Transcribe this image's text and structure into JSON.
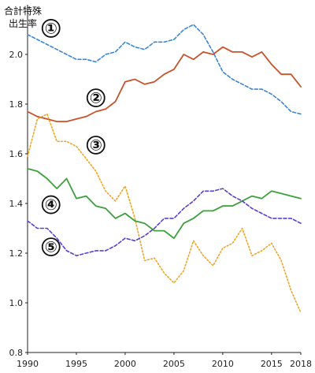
{
  "chart_data": {
    "type": "line",
    "ylabel_lines": [
      "合計特殊",
      "出生率"
    ],
    "xlim": [
      1990,
      2018
    ],
    "ylim": [
      0.8,
      2.2
    ],
    "yticks": [
      0.8,
      1.0,
      1.2,
      1.4,
      1.6,
      1.8,
      2.0
    ],
    "xticks": [
      1990,
      1995,
      2000,
      2005,
      2010,
      2015,
      2018
    ],
    "grid": false,
    "x": [
      1990,
      1991,
      1992,
      1993,
      1994,
      1995,
      1996,
      1997,
      1998,
      1999,
      2000,
      2001,
      2002,
      2003,
      2004,
      2005,
      2006,
      2007,
      2008,
      2009,
      2010,
      2011,
      2012,
      2013,
      2014,
      2015,
      2016,
      2017,
      2018
    ],
    "series": [
      {
        "label": "①",
        "color": "#3a86d8",
        "dash": "dashed",
        "label_x": 1992.4,
        "label_y": 2.105,
        "values": [
          2.08,
          2.06,
          2.04,
          2.02,
          2.0,
          1.98,
          1.98,
          1.97,
          2.0,
          2.01,
          2.05,
          2.03,
          2.02,
          2.05,
          2.05,
          2.06,
          2.1,
          2.12,
          2.08,
          2.01,
          1.93,
          1.9,
          1.88,
          1.86,
          1.86,
          1.84,
          1.81,
          1.77,
          1.76
        ]
      },
      {
        "label": "②",
        "color": "#c8532b",
        "dash": "solid",
        "label_x": 1997.0,
        "label_y": 1.825,
        "values": [
          1.77,
          1.75,
          1.74,
          1.73,
          1.73,
          1.74,
          1.75,
          1.77,
          1.78,
          1.81,
          1.89,
          1.9,
          1.88,
          1.89,
          1.92,
          1.94,
          2.0,
          1.98,
          2.01,
          2.0,
          2.03,
          2.01,
          2.01,
          1.99,
          2.01,
          1.96,
          1.92,
          1.92,
          1.87
        ]
      },
      {
        "label": "③",
        "color": "#f2a524",
        "dash": "dotted",
        "label_x": 1997.0,
        "label_y": 1.635,
        "values": [
          1.59,
          1.74,
          1.76,
          1.65,
          1.65,
          1.63,
          1.58,
          1.53,
          1.45,
          1.41,
          1.47,
          1.34,
          1.17,
          1.18,
          1.12,
          1.08,
          1.13,
          1.25,
          1.19,
          1.15,
          1.22,
          1.24,
          1.3,
          1.19,
          1.21,
          1.24,
          1.17,
          1.05,
          0.96
        ]
      },
      {
        "label": "④",
        "color": "#3ca13a",
        "dash": "solid",
        "label_x": 1992.4,
        "label_y": 1.395,
        "values": [
          1.54,
          1.53,
          1.5,
          1.46,
          1.5,
          1.42,
          1.43,
          1.39,
          1.38,
          1.34,
          1.36,
          1.33,
          1.32,
          1.29,
          1.29,
          1.26,
          1.32,
          1.34,
          1.37,
          1.37,
          1.39,
          1.39,
          1.41,
          1.43,
          1.42,
          1.45,
          1.44,
          1.43,
          1.42
        ]
      },
      {
        "label": "⑤",
        "color": "#5b3fd4",
        "dash": "dashed",
        "label_x": 1992.4,
        "label_y": 1.225,
        "values": [
          1.33,
          1.3,
          1.3,
          1.26,
          1.21,
          1.19,
          1.2,
          1.21,
          1.21,
          1.23,
          1.26,
          1.25,
          1.27,
          1.3,
          1.34,
          1.34,
          1.38,
          1.41,
          1.45,
          1.45,
          1.46,
          1.43,
          1.41,
          1.38,
          1.36,
          1.34,
          1.34,
          1.34,
          1.32
        ]
      }
    ]
  }
}
